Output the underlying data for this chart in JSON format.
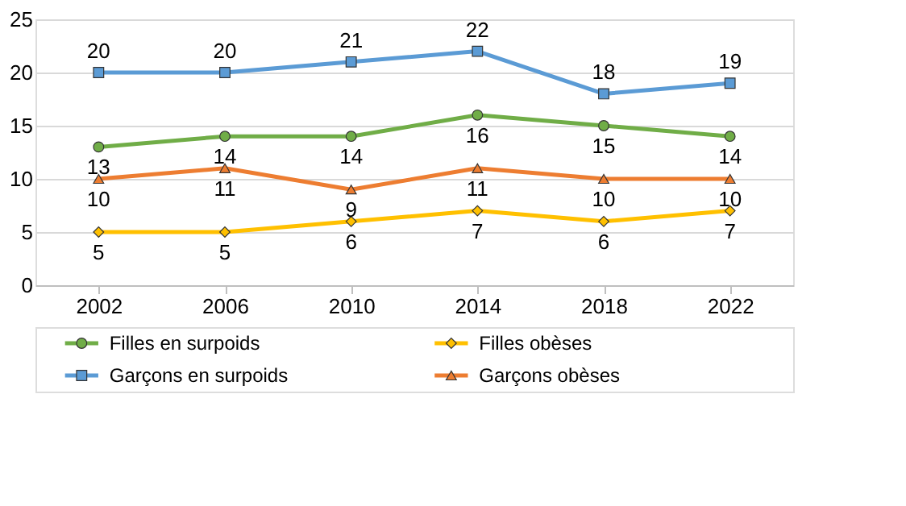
{
  "chart_data": {
    "type": "line",
    "categories": [
      "2002",
      "2006",
      "2010",
      "2014",
      "2018",
      "2022"
    ],
    "series": [
      {
        "name": "Garçons en surpoids",
        "color": "#5b9bd5",
        "marker": "square",
        "values": [
          20,
          20,
          21,
          22,
          18,
          19
        ]
      },
      {
        "name": "Garçons obèses",
        "color": "#ed7d31",
        "marker": "triangle",
        "values": [
          10,
          11,
          9,
          11,
          10,
          10
        ]
      },
      {
        "name": "Filles en surpoids",
        "color": "#70ad47",
        "marker": "circle",
        "values": [
          13,
          14,
          14,
          16,
          15,
          14
        ]
      },
      {
        "name": "Filles obèses",
        "color": "#ffc000",
        "marker": "diamond",
        "values": [
          5,
          5,
          6,
          7,
          6,
          7
        ]
      }
    ],
    "ylim": [
      0,
      25
    ],
    "yticks": [
      0,
      5,
      10,
      15,
      20,
      25
    ],
    "grid": "y",
    "legend": "bottom",
    "data_labels": true,
    "line_style": "solid"
  }
}
